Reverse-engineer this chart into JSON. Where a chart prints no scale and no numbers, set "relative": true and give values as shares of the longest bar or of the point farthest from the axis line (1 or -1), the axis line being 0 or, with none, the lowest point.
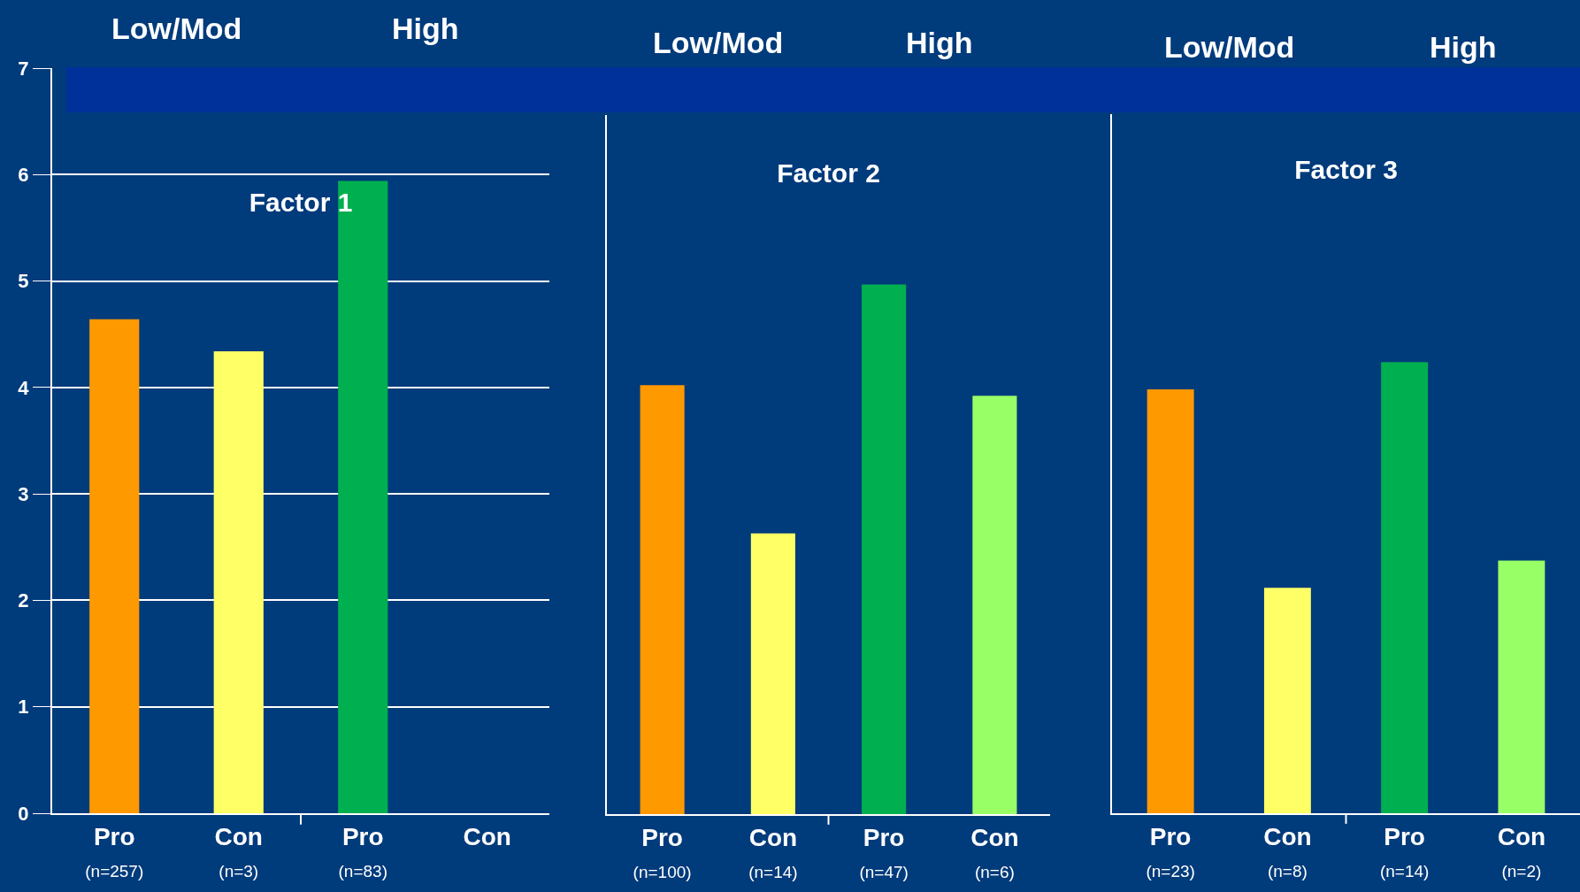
{
  "chart_data": [
    {
      "type": "bar",
      "title": "Factor 1",
      "categories": [
        "Pro\n(n=257)",
        "Con\n(n=3)",
        "Pro\n(n=83)",
        "Con"
      ],
      "values": [
        4.64,
        4.34,
        5.94,
        null
      ],
      "colors": [
        "#ff9900",
        "#ffff66",
        "#00b050",
        "#99ff66"
      ],
      "annotations": [
        "Low/Mod",
        "High"
      ],
      "ylim": [
        0,
        7
      ],
      "yticks": [
        0,
        1,
        2,
        3,
        4,
        5,
        6,
        7
      ],
      "grid": "y"
    },
    {
      "type": "bar",
      "title": "Factor 2",
      "categories": [
        "Pro\n(n=100)",
        "Con\n(n=14)",
        "Pro\n(n=47)",
        "Con\n(n=6)"
      ],
      "values": [
        0.81,
        0.53,
        1,
        0.79
      ],
      "colors": [
        "#ff9900",
        "#ffff66",
        "#00b050",
        "#99ff66"
      ],
      "annotations": [
        "Low/Mod",
        "High"
      ],
      "relative": true
    },
    {
      "type": "bar",
      "title": "Factor 3",
      "categories": [
        "Pro\n(n=23)",
        "Con\n(n=8)",
        "Pro\n(n=14)",
        "Con\n(n=2)"
      ],
      "values": [
        0.94,
        0.5,
        1,
        0.56
      ],
      "colors": [
        "#ff9900",
        "#ffff66",
        "#00b050",
        "#99ff66"
      ],
      "annotations": [
        "Low/Mod",
        "High"
      ],
      "relative": true
    }
  ]
}
